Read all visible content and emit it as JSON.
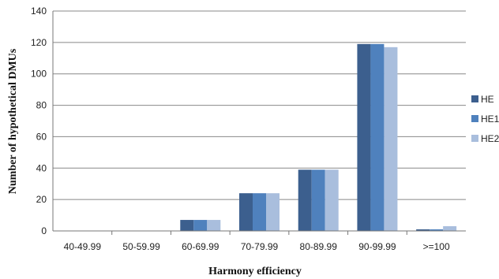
{
  "chart_data": {
    "type": "bar",
    "xlabel": "Harmony efficiency",
    "ylabel": "Number of hypothetical DMUs",
    "ylim": [
      0,
      140
    ],
    "yticks": [
      0,
      20,
      40,
      60,
      80,
      100,
      120,
      140
    ],
    "grid": true,
    "legend_position": "right",
    "categories": [
      "40-49.99",
      "50-59.99",
      "60-69.99",
      "70-79.99",
      "80-89.99",
      "90-99.99",
      ">=100"
    ],
    "series": [
      {
        "name": "HE",
        "color": "#3c5f8e",
        "values": [
          0,
          0,
          7,
          24,
          39,
          119,
          1
        ]
      },
      {
        "name": "HE1",
        "color": "#4f81bd",
        "values": [
          0,
          0,
          7,
          24,
          39,
          119,
          1
        ]
      },
      {
        "name": "HE2",
        "color": "#a9bedd",
        "values": [
          0,
          0,
          7,
          24,
          39,
          117,
          3
        ]
      }
    ]
  }
}
